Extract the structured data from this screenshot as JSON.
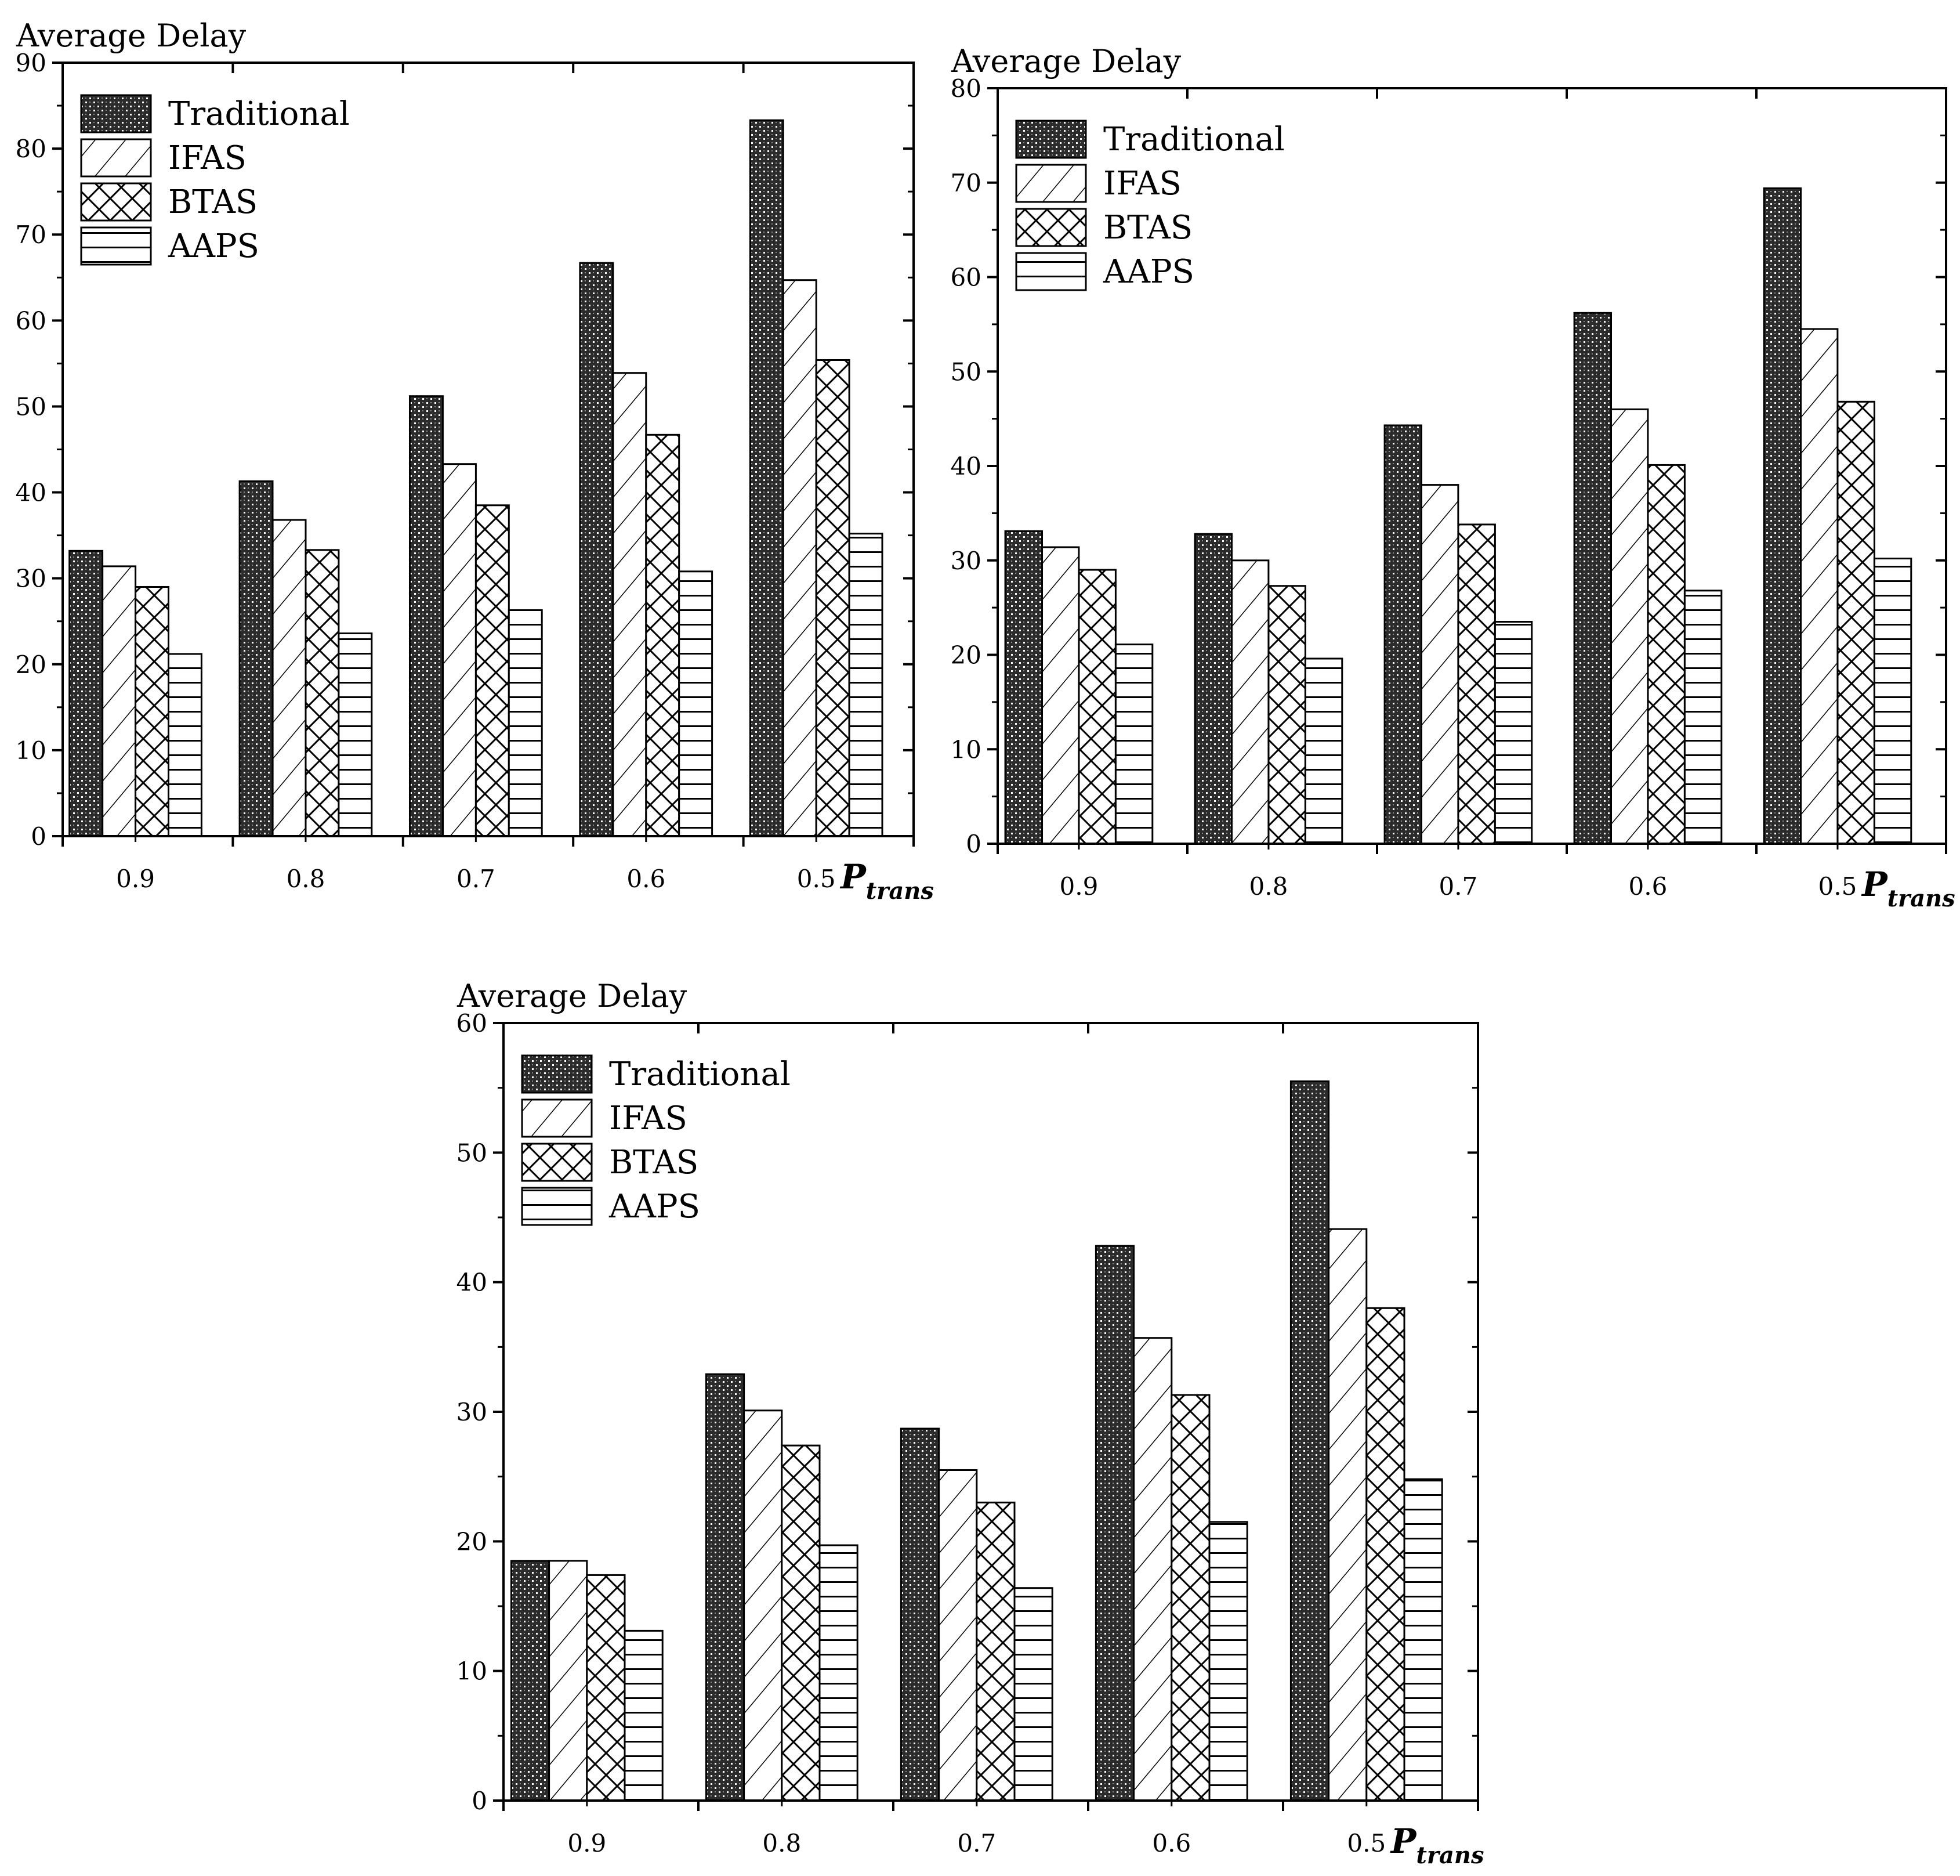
{
  "chart_data": [
    {
      "type": "bar",
      "title": "",
      "ylabel": "Average Delay",
      "xlabel": "P_trans",
      "xlabel_main": "P",
      "xlabel_sub": "trans",
      "ylim": [
        0,
        90
      ],
      "yticks": [
        0,
        10,
        20,
        30,
        40,
        50,
        60,
        70,
        80,
        90
      ],
      "categories": [
        "0.9",
        "0.8",
        "0.7",
        "0.6",
        "0.5"
      ],
      "legend_position": "top-left",
      "series": [
        {
          "name": "Traditional",
          "pattern": "dots",
          "values": [
            33.2,
            41.3,
            51.2,
            66.7,
            83.3
          ]
        },
        {
          "name": "IFAS",
          "pattern": "diagonal",
          "values": [
            31.4,
            36.8,
            43.3,
            53.9,
            64.7
          ]
        },
        {
          "name": "BTAS",
          "pattern": "crosshatch",
          "values": [
            29.0,
            33.3,
            38.5,
            46.7,
            55.4
          ]
        },
        {
          "name": "AAPS",
          "pattern": "horizontal",
          "values": [
            21.2,
            23.6,
            26.3,
            30.8,
            35.2
          ]
        }
      ]
    },
    {
      "type": "bar",
      "title": "",
      "ylabel": "Average Delay",
      "xlabel": "P_trans",
      "xlabel_main": "P",
      "xlabel_sub": "trans",
      "ylim": [
        0,
        80
      ],
      "yticks": [
        0,
        10,
        20,
        30,
        40,
        50,
        60,
        70,
        80
      ],
      "categories": [
        "0.9",
        "0.8",
        "0.7",
        "0.6",
        "0.5"
      ],
      "legend_position": "top-left",
      "series": [
        {
          "name": "Traditional",
          "pattern": "dots",
          "values": [
            33.1,
            32.8,
            44.3,
            56.2,
            69.4
          ]
        },
        {
          "name": "IFAS",
          "pattern": "diagonal",
          "values": [
            31.4,
            30.0,
            38.0,
            46.0,
            54.5
          ]
        },
        {
          "name": "BTAS",
          "pattern": "crosshatch",
          "values": [
            29.0,
            27.3,
            33.8,
            40.1,
            46.8
          ]
        },
        {
          "name": "AAPS",
          "pattern": "horizontal",
          "values": [
            21.1,
            19.6,
            23.5,
            26.8,
            30.2
          ]
        }
      ]
    },
    {
      "type": "bar",
      "title": "",
      "ylabel": "Average Delay",
      "xlabel": "P_trans",
      "xlabel_main": "P",
      "xlabel_sub": "trans",
      "ylim": [
        0,
        60
      ],
      "yticks": [
        0,
        10,
        20,
        30,
        40,
        50,
        60
      ],
      "categories": [
        "0.9",
        "0.8",
        "0.7",
        "0.6",
        "0.5"
      ],
      "legend_position": "top-left",
      "series": [
        {
          "name": "Traditional",
          "pattern": "dots",
          "values": [
            18.5,
            32.9,
            28.7,
            42.8,
            55.5
          ]
        },
        {
          "name": "IFAS",
          "pattern": "diagonal",
          "values": [
            18.5,
            30.1,
            25.5,
            35.7,
            44.1
          ]
        },
        {
          "name": "BTAS",
          "pattern": "crosshatch",
          "values": [
            17.4,
            27.4,
            23.0,
            31.3,
            38.0
          ]
        },
        {
          "name": "AAPS",
          "pattern": "horizontal",
          "values": [
            13.1,
            19.7,
            16.4,
            21.5,
            24.8
          ]
        }
      ]
    }
  ]
}
